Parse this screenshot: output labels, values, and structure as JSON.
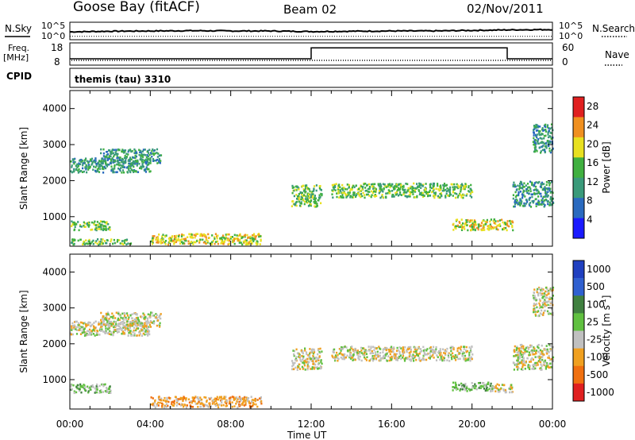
{
  "header": {
    "station": "Goose Bay (fitACF)",
    "beam": "Beam 02",
    "date": "02/Nov/2011"
  },
  "panels": {
    "nsky_label": "N.Sky",
    "nsearch_label": "N.Search",
    "nsky_ticks": [
      "10^5",
      "10^0"
    ],
    "freq_label_1": "Freq.",
    "freq_label_2": "[MHz]",
    "freq_ticks": [
      "18",
      "8"
    ],
    "nave_label": "Nave",
    "nave_ticks": [
      "60",
      "0"
    ],
    "cpid_label": "CPID",
    "cpid_value": "themis (tau) 3310"
  },
  "chart_data": [
    {
      "type": "line",
      "name": "nsky-nsearch",
      "x": [
        "00:00",
        "02:00",
        "04:00",
        "06:00",
        "08:00",
        "10:00",
        "12:00",
        "14:00",
        "16:00",
        "18:00",
        "20:00",
        "22:00",
        "24:00"
      ],
      "series": [
        {
          "name": "N.Sky",
          "values": [
            2.2,
            2.4,
            2.5,
            2.6,
            2.5,
            2.5,
            2.3,
            2.4,
            2.5,
            2.5,
            2.7,
            2.9,
            3.0
          ]
        },
        {
          "name": "N.Search",
          "values": [
            0.6,
            0.6,
            0.6,
            0.6,
            0.6,
            0.6,
            0.6,
            0.6,
            0.6,
            0.6,
            0.6,
            0.6,
            0.6
          ]
        }
      ],
      "ylim": [
        0,
        5
      ],
      "grid": false
    },
    {
      "type": "line",
      "name": "freq-nave",
      "series": [
        {
          "name": "Freq.",
          "segments": [
            {
              "x": [
                "00:00",
                "12:00"
              ],
              "values": [
                10.5,
                10.5
              ]
            },
            {
              "x": [
                "12:00",
                "21:45"
              ],
              "values": [
                16.2,
                16.2
              ]
            },
            {
              "x": [
                "21:45",
                "24:00"
              ],
              "values": [
                10.5,
                10.5
              ]
            }
          ]
        },
        {
          "name": "Nave",
          "values_constant": 10
        }
      ],
      "ylim_left": [
        8,
        18
      ],
      "ylim_right": [
        0,
        60
      ],
      "grid": false
    },
    {
      "type": "heatmap",
      "name": "power",
      "xlabel": "Time UT",
      "ylabel": "Slant Range [km]",
      "xticks": [
        "00:00",
        "04:00",
        "08:00",
        "12:00",
        "16:00",
        "20:00",
        "00:00"
      ],
      "yticks": [
        1000,
        2000,
        3000,
        4000
      ],
      "xlim_hours": [
        0,
        24
      ],
      "ylim": [
        180,
        4500
      ],
      "colorbar_label": "Power [dB]",
      "colorbar_ticks": [
        4,
        8,
        12,
        16,
        20,
        24,
        28
      ],
      "colorbar_range": [
        0,
        30
      ],
      "colors": [
        "#1a1aff",
        "#2a6abf",
        "#3a9a7a",
        "#40b040",
        "#e8e020",
        "#f09020",
        "#e02020"
      ],
      "echo_regions": [
        {
          "t0": 0.0,
          "t1": 4.0,
          "r0": 2250,
          "r1": 2650,
          "level": 2
        },
        {
          "t0": 1.5,
          "t1": 4.5,
          "r0": 2500,
          "r1": 2900,
          "level": 2
        },
        {
          "t0": 0.0,
          "t1": 2.0,
          "r0": 650,
          "r1": 900,
          "level": 3
        },
        {
          "t0": 0.0,
          "t1": 3.0,
          "r0": 250,
          "r1": 400,
          "level": 3
        },
        {
          "t0": 4.0,
          "t1": 9.5,
          "r0": 250,
          "r1": 550,
          "level": 4
        },
        {
          "t0": 11.0,
          "t1": 12.5,
          "r0": 1300,
          "r1": 1900,
          "level": 3
        },
        {
          "t0": 13.0,
          "t1": 20.0,
          "r0": 1550,
          "r1": 1950,
          "level": 3
        },
        {
          "t0": 19.0,
          "t1": 22.0,
          "r0": 650,
          "r1": 950,
          "level": 4
        },
        {
          "t0": 22.0,
          "t1": 24.0,
          "r0": 1300,
          "r1": 2000,
          "level": 2
        },
        {
          "t0": 23.0,
          "t1": 24.0,
          "r0": 2800,
          "r1": 3600,
          "level": 2
        }
      ]
    },
    {
      "type": "heatmap",
      "name": "velocity",
      "xlabel": "Time UT",
      "ylabel": "Slant Range [km]",
      "xticks": [
        "00:00",
        "04:00",
        "08:00",
        "12:00",
        "16:00",
        "20:00",
        "00:00"
      ],
      "yticks": [
        1000,
        2000,
        3000,
        4000
      ],
      "xlim_hours": [
        0,
        24
      ],
      "ylim": [
        180,
        4500
      ],
      "colorbar_label": "Velocity [m s^-1]",
      "colorbar_ticks": [
        "1000",
        "500",
        "100",
        "25",
        "-25",
        "-100",
        "-500",
        "-1000"
      ],
      "colors": [
        "#2040c0",
        "#3060d0",
        "#408040",
        "#60c040",
        "#c0c0c0",
        "#f0a020",
        "#f07010",
        "#e02020"
      ],
      "echo_regions": [
        {
          "t0": 0.0,
          "t1": 4.0,
          "r0": 2250,
          "r1": 2650,
          "level": 4
        },
        {
          "t0": 1.5,
          "t1": 4.5,
          "r0": 2500,
          "r1": 2900,
          "level": 4
        },
        {
          "t0": 0.0,
          "t1": 2.0,
          "r0": 650,
          "r1": 900,
          "level": 3
        },
        {
          "t0": 4.0,
          "t1": 9.5,
          "r0": 250,
          "r1": 550,
          "level": 5
        },
        {
          "t0": 11.0,
          "t1": 12.5,
          "r0": 1300,
          "r1": 1900,
          "level": 4
        },
        {
          "t0": 13.0,
          "t1": 20.0,
          "r0": 1550,
          "r1": 1950,
          "level": 4
        },
        {
          "t0": 19.0,
          "t1": 21.0,
          "r0": 700,
          "r1": 950,
          "level": 3
        },
        {
          "t0": 21.0,
          "t1": 22.0,
          "r0": 650,
          "r1": 900,
          "level": 4
        },
        {
          "t0": 22.0,
          "t1": 24.0,
          "r0": 1300,
          "r1": 2000,
          "level": 4
        },
        {
          "t0": 23.0,
          "t1": 24.0,
          "r0": 2800,
          "r1": 3600,
          "level": 4
        }
      ]
    }
  ]
}
